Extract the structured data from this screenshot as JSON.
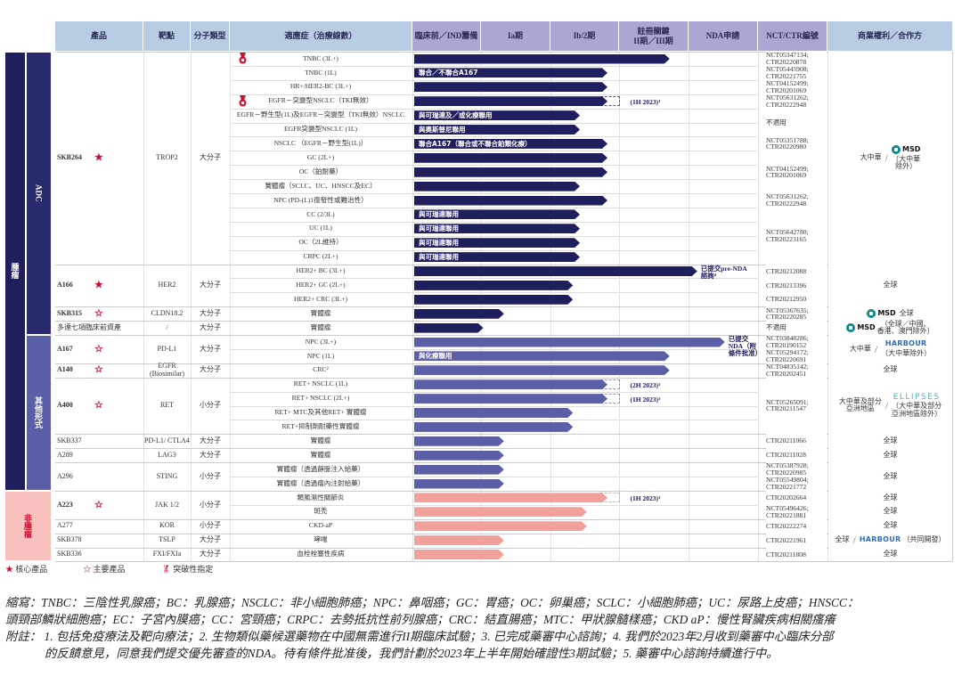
{
  "headers": [
    "產品",
    "靶點",
    "分子類型",
    "適應症（治療線數）",
    "臨床前／IND籌備",
    "Ia期",
    "Ib/2期",
    "註冊關鍵\nII期／III期",
    "NDA申請",
    "NCT/CTR編號",
    "商業權利／合作方"
  ],
  "colors": {
    "header_blue": "#b8cce4",
    "header_lav": "#a9a8d4",
    "navy": "#1f1f5e",
    "purple": "#5a5fa8",
    "pink": "#f4a09a",
    "noncat": "#f9c0c0",
    "star": "#c8102e"
  },
  "categories": [
    {
      "label": "腫瘤",
      "level": "outer",
      "from": 0,
      "to": 30,
      "color": "#1f1f5e"
    },
    {
      "label": "ADC",
      "level": "inner",
      "from": 0,
      "to": 19,
      "color": "#2a2a6e"
    },
    {
      "label": "其他形式",
      "level": "inner",
      "from": 20,
      "to": 30,
      "color": "#5a5fa8"
    },
    {
      "label": "非腫瘤",
      "level": "both",
      "from": 31,
      "to": 35,
      "color": "#f9c0c0"
    }
  ],
  "products": [
    {
      "name": "SKB264",
      "mark": "core",
      "target": "TROP2",
      "type": "大分子",
      "from": 0,
      "to": 14
    },
    {
      "name": "A166",
      "mark": "core",
      "target": "HER2",
      "type": "大分子",
      "from": 15,
      "to": 17
    },
    {
      "name": "SKB315",
      "mark": "main",
      "target": "CLDN18.2",
      "type": "大分子",
      "from": 18,
      "to": 18
    },
    {
      "name": "多達七項臨床前資產",
      "mark": "",
      "target": "/",
      "type": "大分子",
      "from": 19,
      "to": 19
    },
    {
      "name": "A167",
      "mark": "main",
      "target": "PD-L1",
      "type": "大分子",
      "from": 20,
      "to": 21
    },
    {
      "name": "A140",
      "mark": "main",
      "target": "EGFR (Biosimilar)",
      "type": "大分子",
      "from": 22,
      "to": 22
    },
    {
      "name": "A400",
      "mark": "main",
      "target": "RET",
      "type": "小分子",
      "from": 23,
      "to": 26
    },
    {
      "name": "SKB337",
      "mark": "",
      "target": "PD-L1/ CTLA4",
      "type": "大分子",
      "from": 27,
      "to": 27
    },
    {
      "name": "A289",
      "mark": "",
      "target": "LAG3",
      "type": "大分子",
      "from": 28,
      "to": 28
    },
    {
      "name": "A296",
      "mark": "",
      "target": "STING",
      "type": "小分子",
      "from": 29,
      "to": 30
    },
    {
      "name": "A223",
      "mark": "main",
      "target": "JAK 1/2",
      "type": "小分子",
      "from": 31,
      "to": 32
    },
    {
      "name": "A277",
      "mark": "",
      "target": "KOR",
      "type": "小分子",
      "from": 33,
      "to": 33
    },
    {
      "name": "SKB378",
      "mark": "",
      "target": "TSLP",
      "type": "大分子",
      "from": 34,
      "to": 34
    },
    {
      "name": "SKB336",
      "mark": "",
      "target": "FXI/FXIa",
      "type": "大分子",
      "from": 35,
      "to": 35
    }
  ],
  "rows": [
    {
      "ind": "TNBC (3L+)",
      "progress": 3.7,
      "color": "navy",
      "bt": true
    },
    {
      "ind": "TNBC (1L)",
      "progress": 2.8,
      "color": "navy",
      "label": "聯合／不聯合A167"
    },
    {
      "ind": "HR+/HER2-BC (3L+)",
      "progress": 2.8,
      "color": "navy"
    },
    {
      "ind": "EGFR－突變型NSCLC（TKI無效）",
      "progress": 2.8,
      "color": "navy",
      "bt": true,
      "planned": 3.0,
      "note": "(1H 2023)³"
    },
    {
      "ind": "EGFR－野生型(1L)及EGFR－突變型（TKI無效）NSCLC",
      "progress": 2.4,
      "color": "navy",
      "label": "與可瑞達及／或化療聯用"
    },
    {
      "ind": "EGFR突變型NSCLC (1L)",
      "progress": 2.4,
      "color": "navy",
      "label": "與奧斯替尼聯用"
    },
    {
      "ind": "NSCLC （EGFR－野生型(1L)）",
      "progress": 2.8,
      "color": "navy",
      "label": "聯合A167（聯合或不聯合鉑類化療）"
    },
    {
      "ind": "GC (2L+)",
      "progress": 2.8,
      "color": "navy"
    },
    {
      "ind": "OC（鉑耐藥）",
      "progress": 2.8,
      "color": "navy"
    },
    {
      "ind": "實體瘤（SCLC、UC、HNSCC及EC）",
      "progress": 2.4,
      "color": "navy"
    },
    {
      "ind": "NPC (PD-(L)1復發性或難治性）",
      "progress": 2.8,
      "color": "navy"
    },
    {
      "ind": "CC (2/3L)",
      "progress": 2.4,
      "color": "navy",
      "label": "與可瑞達聯用"
    },
    {
      "ind": "UC (1L)",
      "progress": 2.4,
      "color": "navy",
      "label": "與可瑞達聯用"
    },
    {
      "ind": "OC（2L維持）",
      "progress": 2.4,
      "color": "navy",
      "label": "與可瑞達聯用"
    },
    {
      "ind": "CRPC (2L+)",
      "progress": 2.4,
      "color": "navy",
      "label": "與可瑞達聯用"
    },
    {
      "ind": "HER2+ BC (3L+)",
      "progress": 4.1,
      "color": "navy",
      "note": "已提交pre-NDA\n諮詢⁴"
    },
    {
      "ind": "HER2+ GC (2L+)",
      "progress": 2.3,
      "color": "navy"
    },
    {
      "ind": "HER2+ CRC (3L+)",
      "progress": 2.3,
      "color": "navy"
    },
    {
      "ind": "實體瘤",
      "progress": 1.3,
      "color": "navy"
    },
    {
      "ind": "實體瘤",
      "progress": 1.0,
      "color": "navy"
    },
    {
      "ind": "NPC (3L+)",
      "progress": 4.5,
      "color": "purple",
      "note": "已提交\nNDA（附\n條件批准）"
    },
    {
      "ind": "NPC (1L)",
      "progress": 3.7,
      "color": "purple",
      "label": "與化療聯用"
    },
    {
      "ind": "CRC²",
      "progress": 3.7,
      "color": "purple"
    },
    {
      "ind": "RET+ NSCLC (1L)",
      "progress": 2.8,
      "color": "purple",
      "planned": 3.0,
      "note": "(2H 2023)³"
    },
    {
      "ind": "RET+ NSCLC (2L+)",
      "progress": 2.8,
      "color": "purple",
      "planned": 3.0,
      "note": "(1H 2023)³"
    },
    {
      "ind": "RET+ MTC及其他RET+ 實體瘤",
      "progress": 2.3,
      "color": "purple"
    },
    {
      "ind": "RET+抑制劑耐藥性實體瘤",
      "progress": 2.3,
      "color": "purple"
    },
    {
      "ind": "實體瘤",
      "progress": 1.3,
      "color": "purple"
    },
    {
      "ind": "實體瘤",
      "progress": 1.3,
      "color": "purple"
    },
    {
      "ind": "實體瘤（透過靜脈注入給藥）",
      "progress": 1.3,
      "color": "purple"
    },
    {
      "ind": "實體瘤（透過瘤內注射給藥）",
      "progress": 1.3,
      "color": "purple"
    },
    {
      "ind": "類風濕性關節炎",
      "progress": 2.8,
      "color": "pink",
      "planned": 3.0,
      "note": "(1H 2023)³"
    },
    {
      "ind": "斑禿",
      "progress": 2.5,
      "color": "pink"
    },
    {
      "ind": "CKD-aP",
      "progress": 2.5,
      "color": "pink"
    },
    {
      "ind": "哮喘",
      "progress": 1.3,
      "color": "pink"
    },
    {
      "ind": "血栓栓塞性疾病",
      "progress": 1.3,
      "color": "pink"
    }
  ],
  "nct": [
    {
      "from": 0,
      "to": 0,
      "text": "NCT05347134;\nCTR20220878"
    },
    {
      "from": 1,
      "to": 1,
      "text": "NCT05445908;\nCTR20221755"
    },
    {
      "from": 2,
      "to": 2,
      "text": "NCT04152499;\nCTR20201069"
    },
    {
      "from": 3,
      "to": 3,
      "text": "NCT05631262;\nCTR20222948"
    },
    {
      "from": 4,
      "to": 5,
      "text": "不適用"
    },
    {
      "from": 6,
      "to": 6,
      "text": "NCT05351788;\nCTR20220980"
    },
    {
      "from": 7,
      "to": 9,
      "text": "NCT04152499;\nCTR20201069"
    },
    {
      "from": 10,
      "to": 10,
      "text": "NCT05631262;\nCTR20222948"
    },
    {
      "from": 11,
      "to": 14,
      "text": "NCT05642780;\nCTR20223165"
    },
    {
      "from": 15,
      "to": 15,
      "text": "CTR20212088"
    },
    {
      "from": 16,
      "to": 16,
      "text": "CTR20213396"
    },
    {
      "from": 17,
      "to": 17,
      "text": "CTR20212950"
    },
    {
      "from": 18,
      "to": 18,
      "text": "NCT05367635;\nCTR20220285"
    },
    {
      "from": 19,
      "to": 19,
      "text": "不適用"
    },
    {
      "from": 20,
      "to": 20,
      "text": "NCT03848286;\nCTR20190152"
    },
    {
      "from": 21,
      "to": 21,
      "text": "NCT05294172;\nCTR20220691"
    },
    {
      "from": 22,
      "to": 22,
      "text": "NCT04835142;\nCTR20202451"
    },
    {
      "from": 23,
      "to": 26,
      "text": "NCT05265091;\nCTR20211547"
    },
    {
      "from": 27,
      "to": 27,
      "text": "CTR20211066"
    },
    {
      "from": 28,
      "to": 28,
      "text": "CTR20211028"
    },
    {
      "from": 29,
      "to": 29,
      "text": "NCT05387928;\nCTR20220985"
    },
    {
      "from": 30,
      "to": 30,
      "text": "NCT05549804;\nCTR20221772"
    },
    {
      "from": 31,
      "to": 31,
      "text": "CTR20202664"
    },
    {
      "from": 32,
      "to": 32,
      "text": "NCT05496426;\nCTR20221881"
    },
    {
      "from": 33,
      "to": 33,
      "text": "CTR20222274"
    },
    {
      "from": 34,
      "to": 34,
      "text": "CTR20221961"
    },
    {
      "from": 35,
      "to": 35,
      "text": "CTR20211808"
    }
  ],
  "rights": [
    {
      "from": 0,
      "to": 14,
      "text": "大中華",
      "partner": "MSD",
      "partner_note": "（大中華\n除外）"
    },
    {
      "from": 15,
      "to": 17,
      "text": "全球"
    },
    {
      "from": 18,
      "to": 18,
      "partner": "MSD",
      "text2": "全球"
    },
    {
      "from": 19,
      "to": 19,
      "partner": "MSD",
      "partner_note": "（全球／中國、\n香港、澳門除外）"
    },
    {
      "from": 20,
      "to": 21,
      "text": "大中華",
      "partner": "HARBOUR",
      "partner_note": "（大中華除外）"
    },
    {
      "from": 22,
      "to": 22,
      "text": "全球"
    },
    {
      "from": 23,
      "to": 26,
      "text": "大中華及部分\n亞洲地區",
      "partner": "ELLIPSES",
      "partner_note": "（大中華及部分\n亞洲地區除外）"
    },
    {
      "from": 27,
      "to": 27,
      "text": "全球"
    },
    {
      "from": 28,
      "to": 28,
      "text": "全球"
    },
    {
      "from": 29,
      "to": 30,
      "text": "全球"
    },
    {
      "from": 31,
      "to": 31,
      "text": "全球"
    },
    {
      "from": 32,
      "to": 32,
      "text": "全球"
    },
    {
      "from": 33,
      "to": 33,
      "text": "全球"
    },
    {
      "from": 34,
      "to": 34,
      "text": "全球",
      "partner": "HARBOUR",
      "partner_note": "（共同開發）"
    },
    {
      "from": 35,
      "to": 35,
      "text": "全球"
    }
  ],
  "legend": {
    "core": "核心產品",
    "main": "主要產品",
    "breakthrough": "突破性指定"
  },
  "footer": {
    "abbr_1": "縮寫：TNBC：三陰性乳腺癌；BC：乳腺癌；NSCLC：非小細胞肺癌；NPC：鼻咽癌；GC：胃癌；OC：卵巢癌；SCLC：小細胞肺癌；UC：尿路上皮癌；HNSCC：",
    "abbr_2": "頭頸部鱗狀細胞癌；EC：子宮內膜癌；CC：宮頸癌；CRPC：去勢抵抗性前列腺癌；CRC：結直腸癌；MTC：甲狀腺髓樣癌；CKD aP：慢性腎臟疾病相關瘙癢",
    "notes_1": "附註： 1. 包括免疫療法及靶向療法；2. 生物類似藥候選藥物在中國無需進行II期臨床試驗；3. 已完成藥審中心諮詢；4. 我們於2023年2月收到藥審中心臨床分部",
    "notes_2": "的反饋意見，同意我們提交優先審查的NDA。待有條件批准後，我們計劃於2023年上半年開始確證性3期試驗；5. 藥審中心諮詢持續進行中。"
  }
}
